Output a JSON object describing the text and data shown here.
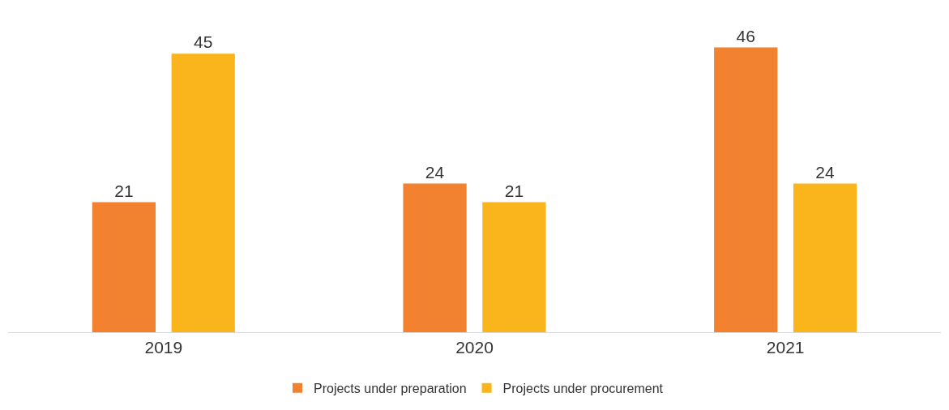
{
  "chart_data": {
    "type": "bar",
    "categories": [
      "2019",
      "2020",
      "2021"
    ],
    "series": [
      {
        "name": "Projects under preparation",
        "color": "#f28130",
        "values": [
          21,
          24,
          46
        ]
      },
      {
        "name": "Projects under procurement",
        "color": "#f9b51b",
        "values": [
          45,
          21,
          24
        ]
      }
    ],
    "data_labels": true,
    "legend": "bottom"
  }
}
